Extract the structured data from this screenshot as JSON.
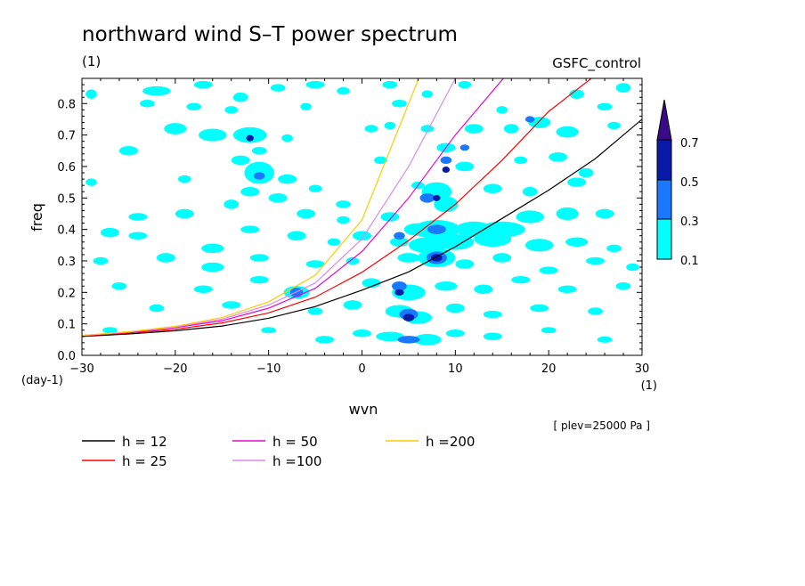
{
  "chart_data": {
    "type": "heatmap",
    "title": "northward wind S–T power spectrum",
    "subtitle_left": "(1)",
    "subtitle_right": "GSFC_control",
    "xlabel": "wvn",
    "ylabel": "freq",
    "x_unit": "(1)",
    "y_unit": "(day-1)",
    "xlim": [
      -30,
      30
    ],
    "ylim": [
      0.0,
      0.88
    ],
    "x_ticks": [
      -30,
      -20,
      -10,
      0,
      10,
      20,
      30
    ],
    "x_tick_labels": [
      "−30",
      "−20",
      "−10",
      "0",
      "10",
      "20",
      "30"
    ],
    "y_ticks": [
      0.0,
      0.1,
      0.2,
      0.3,
      0.4,
      0.5,
      0.6,
      0.7,
      0.8
    ],
    "y_tick_labels": [
      "0.0",
      "0.1",
      "0.2",
      "0.3",
      "0.4",
      "0.5",
      "0.6",
      "0.7",
      "0.8"
    ],
    "annotation": "[ plev=25000 Pa ]",
    "colorbar": {
      "levels": [
        0.1,
        0.3,
        0.5,
        0.7
      ],
      "labels": [
        "0.1",
        "0.3",
        "0.5",
        "0.7"
      ],
      "colors": [
        "#00ffff",
        "#1a78ff",
        "#0a1aa8",
        "#3a0a8a"
      ]
    },
    "series": [
      {
        "name": "h = 12",
        "color": "#000000"
      },
      {
        "name": "h = 25",
        "color": "#ff0000"
      },
      {
        "name": "h = 50",
        "color": "#e60ad2"
      },
      {
        "name": "h =100",
        "color": "#dd88ee"
      },
      {
        "name": "h =200",
        "color": "#ffcc00"
      }
    ],
    "curves": {
      "x": [
        -30,
        -25,
        -20,
        -15,
        -10,
        -5,
        0,
        5,
        10,
        15,
        20,
        25,
        30
      ],
      "h12": [
        0.06,
        0.068,
        0.078,
        0.093,
        0.118,
        0.155,
        0.207,
        0.265,
        0.345,
        0.435,
        0.525,
        0.625,
        0.75
      ],
      "h25": [
        0.062,
        0.071,
        0.083,
        0.103,
        0.135,
        0.185,
        0.264,
        0.365,
        0.48,
        0.62,
        0.775,
        0.89,
        null
      ],
      "h50": [
        0.063,
        0.073,
        0.088,
        0.11,
        0.15,
        0.213,
        0.33,
        0.5,
        0.7,
        0.875,
        null,
        null,
        null
      ],
      "h100": [
        0.063,
        0.074,
        0.09,
        0.115,
        0.16,
        0.23,
        0.37,
        0.6,
        0.88,
        null,
        null,
        null,
        null
      ],
      "h200": [
        0.063,
        0.075,
        0.092,
        0.12,
        0.17,
        0.255,
        0.43,
        0.8,
        null,
        null,
        null,
        null,
        null
      ]
    },
    "blobs_cyan": [
      [
        -29,
        0.83,
        0.6,
        0.015
      ],
      [
        -22,
        0.84,
        1.5,
        0.015
      ],
      [
        -17,
        0.86,
        1.0,
        0.012
      ],
      [
        -13,
        0.82,
        0.8,
        0.015
      ],
      [
        -9,
        0.85,
        0.8,
        0.012
      ],
      [
        -5,
        0.86,
        1.0,
        0.012
      ],
      [
        -2,
        0.84,
        0.7,
        0.012
      ],
      [
        3,
        0.86,
        0.8,
        0.012
      ],
      [
        7,
        0.83,
        0.6,
        0.012
      ],
      [
        11,
        0.86,
        0.7,
        0.012
      ],
      [
        23,
        0.83,
        0.8,
        0.015
      ],
      [
        28,
        0.85,
        0.8,
        0.015
      ],
      [
        -23,
        0.8,
        0.8,
        0.012
      ],
      [
        -18,
        0.79,
        0.8,
        0.012
      ],
      [
        -14,
        0.78,
        0.7,
        0.012
      ],
      [
        -6,
        0.79,
        0.6,
        0.012
      ],
      [
        4,
        0.8,
        0.8,
        0.012
      ],
      [
        15,
        0.78,
        0.6,
        0.012
      ],
      [
        26,
        0.79,
        0.8,
        0.012
      ],
      [
        -20,
        0.72,
        1.2,
        0.018
      ],
      [
        -16,
        0.7,
        1.5,
        0.02
      ],
      [
        -12,
        0.7,
        1.8,
        0.025
      ],
      [
        -11,
        0.65,
        0.8,
        0.012
      ],
      [
        -8,
        0.69,
        0.6,
        0.012
      ],
      [
        1,
        0.72,
        0.7,
        0.012
      ],
      [
        3,
        0.73,
        0.6,
        0.012
      ],
      [
        7,
        0.72,
        0.7,
        0.012
      ],
      [
        12,
        0.72,
        1.0,
        0.015
      ],
      [
        16,
        0.72,
        0.8,
        0.015
      ],
      [
        19,
        0.74,
        1.2,
        0.018
      ],
      [
        22,
        0.71,
        1.2,
        0.018
      ],
      [
        27,
        0.73,
        0.7,
        0.012
      ],
      [
        -25,
        0.65,
        1.0,
        0.015
      ],
      [
        -13,
        0.62,
        1.0,
        0.015
      ],
      [
        -11,
        0.58,
        1.6,
        0.035
      ],
      [
        -12,
        0.52,
        1.0,
        0.015
      ],
      [
        -8,
        0.56,
        1.0,
        0.015
      ],
      [
        2,
        0.62,
        0.7,
        0.012
      ],
      [
        9,
        0.66,
        1.0,
        0.015
      ],
      [
        11,
        0.6,
        1.0,
        0.015
      ],
      [
        17,
        0.62,
        0.7,
        0.012
      ],
      [
        21,
        0.63,
        1.0,
        0.015
      ],
      [
        24,
        0.58,
        0.8,
        0.015
      ],
      [
        -29,
        0.55,
        0.6,
        0.012
      ],
      [
        -19,
        0.56,
        0.7,
        0.012
      ],
      [
        -14,
        0.48,
        0.8,
        0.015
      ],
      [
        -9,
        0.5,
        1.0,
        0.015
      ],
      [
        -5,
        0.53,
        0.7,
        0.012
      ],
      [
        -2,
        0.48,
        0.8,
        0.012
      ],
      [
        6,
        0.54,
        0.7,
        0.012
      ],
      [
        8,
        0.52,
        1.6,
        0.03
      ],
      [
        9,
        0.48,
        1.3,
        0.025
      ],
      [
        14,
        0.53,
        1.0,
        0.015
      ],
      [
        18,
        0.52,
        0.8,
        0.015
      ],
      [
        23,
        0.55,
        1.0,
        0.015
      ],
      [
        -24,
        0.44,
        1.0,
        0.012
      ],
      [
        -19,
        0.45,
        1.0,
        0.015
      ],
      [
        -6,
        0.45,
        1.0,
        0.015
      ],
      [
        -2,
        0.43,
        0.7,
        0.012
      ],
      [
        3,
        0.44,
        1.0,
        0.015
      ],
      [
        6,
        0.4,
        1.5,
        0.02
      ],
      [
        8,
        0.4,
        2.5,
        0.03
      ],
      [
        12,
        0.4,
        2.0,
        0.025
      ],
      [
        15,
        0.4,
        2.5,
        0.025
      ],
      [
        18,
        0.44,
        1.5,
        0.02
      ],
      [
        22,
        0.45,
        1.2,
        0.02
      ],
      [
        26,
        0.45,
        1.0,
        0.015
      ],
      [
        -27,
        0.39,
        1.0,
        0.015
      ],
      [
        -24,
        0.38,
        1.0,
        0.012
      ],
      [
        -16,
        0.34,
        1.2,
        0.015
      ],
      [
        -12,
        0.4,
        1.0,
        0.012
      ],
      [
        -7,
        0.38,
        1.0,
        0.015
      ],
      [
        -3,
        0.36,
        0.7,
        0.012
      ],
      [
        0,
        0.38,
        1.0,
        0.015
      ],
      [
        4,
        0.36,
        1.0,
        0.015
      ],
      [
        7,
        0.35,
        2.0,
        0.025
      ],
      [
        10,
        0.36,
        2.0,
        0.025
      ],
      [
        14,
        0.37,
        2.0,
        0.025
      ],
      [
        19,
        0.35,
        1.5,
        0.02
      ],
      [
        23,
        0.36,
        1.2,
        0.015
      ],
      [
        27,
        0.34,
        0.8,
        0.012
      ],
      [
        -28,
        0.3,
        0.8,
        0.012
      ],
      [
        -21,
        0.31,
        1.0,
        0.015
      ],
      [
        -16,
        0.28,
        1.2,
        0.015
      ],
      [
        -11,
        0.31,
        1.0,
        0.012
      ],
      [
        -5,
        0.29,
        1.0,
        0.012
      ],
      [
        -1,
        0.3,
        0.7,
        0.012
      ],
      [
        5,
        0.31,
        1.2,
        0.015
      ],
      [
        8,
        0.31,
        2.0,
        0.03
      ],
      [
        11,
        0.29,
        1.0,
        0.015
      ],
      [
        15,
        0.31,
        1.0,
        0.015
      ],
      [
        20,
        0.27,
        1.0,
        0.012
      ],
      [
        25,
        0.3,
        1.0,
        0.012
      ],
      [
        29,
        0.28,
        0.7,
        0.012
      ],
      [
        -26,
        0.22,
        0.8,
        0.012
      ],
      [
        -17,
        0.21,
        1.0,
        0.012
      ],
      [
        -11,
        0.24,
        1.0,
        0.012
      ],
      [
        -7,
        0.2,
        1.4,
        0.02
      ],
      [
        1,
        0.23,
        1.0,
        0.015
      ],
      [
        5,
        0.2,
        1.8,
        0.025
      ],
      [
        9,
        0.22,
        1.2,
        0.015
      ],
      [
        13,
        0.21,
        1.0,
        0.015
      ],
      [
        17,
        0.24,
        1.0,
        0.012
      ],
      [
        22,
        0.21,
        1.0,
        0.012
      ],
      [
        28,
        0.22,
        0.8,
        0.012
      ],
      [
        -22,
        0.15,
        0.8,
        0.012
      ],
      [
        -14,
        0.16,
        1.0,
        0.012
      ],
      [
        -5,
        0.14,
        0.8,
        0.012
      ],
      [
        -1,
        0.16,
        1.0,
        0.015
      ],
      [
        4,
        0.14,
        1.5,
        0.02
      ],
      [
        6,
        0.12,
        1.5,
        0.02
      ],
      [
        10,
        0.15,
        1.0,
        0.015
      ],
      [
        14,
        0.13,
        1.0,
        0.012
      ],
      [
        19,
        0.15,
        1.0,
        0.012
      ],
      [
        25,
        0.14,
        0.8,
        0.012
      ],
      [
        -27,
        0.08,
        0.8,
        0.01
      ],
      [
        -10,
        0.08,
        0.8,
        0.01
      ],
      [
        -4,
        0.05,
        1.0,
        0.012
      ],
      [
        0,
        0.07,
        1.0,
        0.012
      ],
      [
        3,
        0.06,
        1.5,
        0.015
      ],
      [
        7,
        0.05,
        1.5,
        0.018
      ],
      [
        10,
        0.07,
        1.0,
        0.012
      ],
      [
        14,
        0.06,
        1.0,
        0.012
      ],
      [
        20,
        0.08,
        0.8,
        0.01
      ],
      [
        26,
        0.05,
        0.8,
        0.01
      ]
    ],
    "blobs_blue": [
      [
        -11,
        0.57,
        0.6,
        0.012
      ],
      [
        -7,
        0.2,
        0.7,
        0.015
      ],
      [
        7,
        0.5,
        0.8,
        0.015
      ],
      [
        8,
        0.4,
        1.0,
        0.015
      ],
      [
        8,
        0.31,
        1.1,
        0.02
      ],
      [
        5,
        0.13,
        1.0,
        0.018
      ],
      [
        5,
        0.05,
        1.2,
        0.012
      ],
      [
        4,
        0.22,
        0.8,
        0.015
      ],
      [
        11,
        0.66,
        0.5,
        0.01
      ],
      [
        9,
        0.62,
        0.6,
        0.012
      ],
      [
        18,
        0.75,
        0.5,
        0.01
      ],
      [
        4,
        0.38,
        0.6,
        0.012
      ]
    ],
    "blobs_navy": [
      [
        -12,
        0.69,
        0.4,
        0.01
      ],
      [
        8,
        0.5,
        0.4,
        0.01
      ],
      [
        8,
        0.31,
        0.6,
        0.012
      ],
      [
        5,
        0.12,
        0.6,
        0.012
      ],
      [
        4,
        0.2,
        0.5,
        0.01
      ],
      [
        9,
        0.59,
        0.4,
        0.01
      ]
    ]
  }
}
